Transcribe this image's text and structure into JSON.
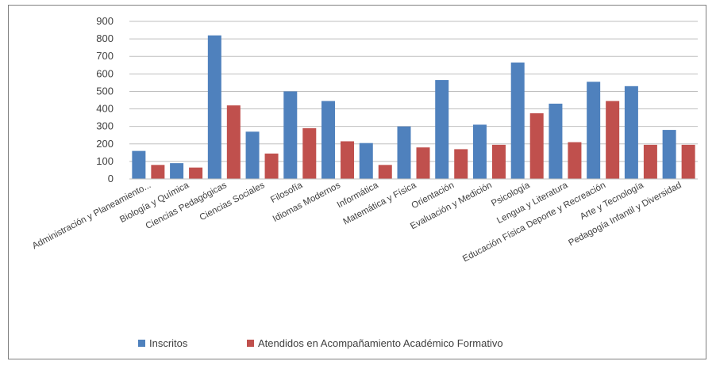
{
  "chart_data": {
    "type": "bar",
    "title": "",
    "xlabel": "",
    "ylabel": "",
    "ylim": [
      0,
      900
    ],
    "y_ticks": [
      0,
      100,
      200,
      300,
      400,
      500,
      600,
      700,
      800,
      900
    ],
    "grid": "horizontal",
    "legend_position": "bottom",
    "categories": [
      "Administración y Planeamiento...",
      "Biología y Química",
      "Ciencias Pedagógicas",
      "Ciencias Sociales",
      "Filosofía",
      "Idiomas Modernos",
      "Informática",
      "Matemática y Física",
      "Orientación",
      "Evaluación y Medición",
      "Psicología",
      "Lengua y Literatura",
      "Educación Física Deporte y Recreación",
      "Arte y Tecnología",
      "Pedagogía Infantil y Diversidad"
    ],
    "series": [
      {
        "name": "Inscritos",
        "color": "#4f81bd",
        "values": [
          160,
          90,
          820,
          270,
          500,
          445,
          205,
          300,
          565,
          310,
          665,
          430,
          555,
          530,
          280
        ]
      },
      {
        "name": "Atendidos en Acompañamiento Académico Formativo",
        "color": "#c0504d",
        "values": [
          80,
          65,
          420,
          145,
          290,
          215,
          80,
          180,
          170,
          195,
          375,
          210,
          445,
          195,
          195
        ]
      }
    ]
  }
}
